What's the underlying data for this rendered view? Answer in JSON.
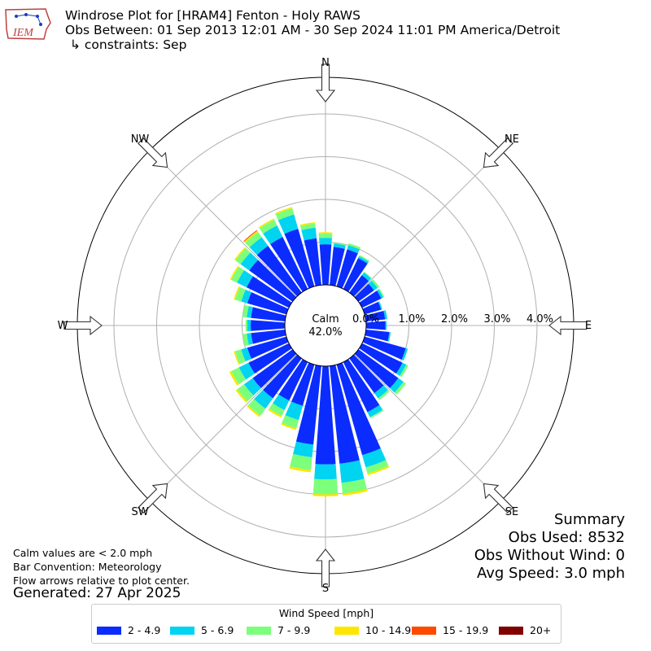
{
  "header": {
    "title": "Windrose Plot for [HRAM4] Fenton - Holy RAWS",
    "subtitle": "Obs Between: 01 Sep 2013 12:01 AM - 30 Sep 2024 11:01 PM America/Detroit",
    "constraints": "↳ constraints: Sep",
    "logo_text": "IEM"
  },
  "footer": {
    "calm_note": "Calm values are < 2.0 mph",
    "bar_convention": "Bar Convention: Meteorology",
    "flow_note": "Flow arrows relative to plot center.",
    "generated": "Generated: 27 Apr 2025"
  },
  "summary": {
    "title": "Summary",
    "obs_used": "Obs Used: 8532",
    "obs_without_wind": "Obs Without Wind: 0",
    "avg_speed": "Avg Speed: 3.0 mph"
  },
  "chart_data": {
    "type": "windrose",
    "title": "Windrose Plot for [HRAM4] Fenton - Holy RAWS",
    "calm_label": "Calm",
    "calm_value": "42.0%",
    "r_ticks": [
      "0.0%",
      "1.0%",
      "2.0%",
      "3.0%",
      "4.0%"
    ],
    "r_range": [
      0,
      4.5
    ],
    "grid": true,
    "directions_labels": [
      "N",
      "NE",
      "E",
      "SE",
      "S",
      "SW",
      "W",
      "NW"
    ],
    "direction_bins": 36,
    "legend": {
      "title": "Wind Speed [mph]",
      "placement": "bottom",
      "items": [
        {
          "label": "2 - 4.9",
          "color": "#0a2cff"
        },
        {
          "label": "5 - 6.9",
          "color": "#00d4f0"
        },
        {
          "label": "7 - 9.9",
          "color": "#7cff7a"
        },
        {
          "label": "10 - 14.9",
          "color": "#ffe600"
        },
        {
          "label": "15 - 19.9",
          "color": "#ff4a00"
        },
        {
          "label": "20+",
          "color": "#800000"
        }
      ]
    },
    "bars": [
      {
        "dir": 0,
        "cum": [
          0.95,
          1.1,
          1.2,
          1.23
        ]
      },
      {
        "dir": 10,
        "cum": [
          0.9,
          0.98,
          1.0
        ]
      },
      {
        "dir": 20,
        "cum": [
          0.9,
          1.0,
          1.05
        ]
      },
      {
        "dir": 30,
        "cum": [
          0.8,
          0.85,
          0.88
        ]
      },
      {
        "dir": 40,
        "cum": [
          0.5,
          0.58,
          0.6
        ]
      },
      {
        "dir": 50,
        "cum": [
          0.45,
          0.55,
          0.6
        ]
      },
      {
        "dir": 60,
        "cum": [
          0.5,
          0.55,
          0.58
        ]
      },
      {
        "dir": 70,
        "cum": [
          0.4,
          0.43
        ]
      },
      {
        "dir": 80,
        "cum": [
          0.45,
          0.5
        ]
      },
      {
        "dir": 90,
        "cum": [
          0.45,
          0.48
        ]
      },
      {
        "dir": 100,
        "cum": [
          0.55,
          0.58
        ]
      },
      {
        "dir": 110,
        "cum": [
          1.0,
          1.05
        ]
      },
      {
        "dir": 120,
        "cum": [
          1.05,
          1.15,
          1.2
        ]
      },
      {
        "dir": 130,
        "cum": [
          1.15,
          1.3,
          1.37
        ]
      },
      {
        "dir": 140,
        "cum": [
          1.0,
          1.15,
          1.2
        ]
      },
      {
        "dir": 150,
        "cum": [
          1.3,
          1.43,
          1.46
        ]
      },
      {
        "dir": 160,
        "cum": [
          2.2,
          2.5,
          2.65,
          2.69
        ]
      },
      {
        "dir": 170,
        "cum": [
          2.3,
          2.75,
          3.0,
          3.05
        ]
      },
      {
        "dir": 180,
        "cum": [
          2.3,
          2.65,
          3.0,
          3.05
        ]
      },
      {
        "dir": 190,
        "cum": [
          1.85,
          2.15,
          2.45,
          2.5
        ]
      },
      {
        "dir": 200,
        "cum": [
          1.0,
          1.35,
          1.55,
          1.59
        ]
      },
      {
        "dir": 210,
        "cum": [
          1.0,
          1.25,
          1.4,
          1.44
        ]
      },
      {
        "dir": 220,
        "cum": [
          1.15,
          1.45,
          1.65,
          1.69
        ]
      },
      {
        "dir": 230,
        "cum": [
          1.15,
          1.4,
          1.6,
          1.64
        ]
      },
      {
        "dir": 240,
        "cum": [
          1.05,
          1.3,
          1.5,
          1.55
        ]
      },
      {
        "dir": 250,
        "cum": [
          0.95,
          1.1,
          1.25,
          1.28
        ]
      },
      {
        "dir": 260,
        "cum": [
          0.8,
          0.9,
          1.0
        ]
      },
      {
        "dir": 270,
        "cum": [
          0.8,
          0.88,
          0.92
        ]
      },
      {
        "dir": 280,
        "cum": [
          0.8,
          0.9,
          1.0
        ]
      },
      {
        "dir": 290,
        "cum": [
          0.95,
          1.1,
          1.25,
          1.28
        ]
      },
      {
        "dir": 300,
        "cum": [
          1.1,
          1.35,
          1.5,
          1.53
        ]
      },
      {
        "dir": 310,
        "cum": [
          1.25,
          1.5,
          1.65,
          1.68
        ]
      },
      {
        "dir": 320,
        "cum": [
          1.35,
          1.6,
          1.75,
          1.78,
          1.8
        ]
      },
      {
        "dir": 330,
        "cum": [
          1.35,
          1.65,
          1.8,
          1.83
        ]
      },
      {
        "dir": 340,
        "cum": [
          1.4,
          1.75,
          1.9,
          1.93
        ]
      },
      {
        "dir": 350,
        "cum": [
          1.1,
          1.35,
          1.45,
          1.48
        ]
      }
    ]
  }
}
